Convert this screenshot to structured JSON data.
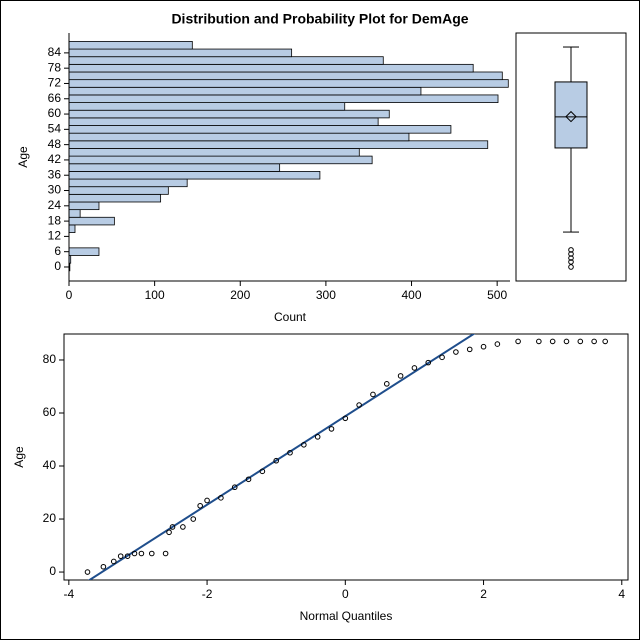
{
  "chart_data": [
    {
      "type": "histogram",
      "title": "Distribution and Probability Plot for DemAge",
      "orientation": "horizontal",
      "xlabel": "Count",
      "ylabel": "Age",
      "color": "#b8cce4",
      "bins": [
        -1.5,
        1.5,
        4.5,
        7.5,
        10.5,
        13.5,
        16.5,
        19.5,
        22.5,
        25.5,
        28.5,
        31.5,
        34.5,
        37.5,
        40.5,
        43.5,
        46.5,
        49.5,
        52.5,
        55.5,
        58.5,
        61.5,
        64.5,
        67.5,
        70.5,
        73.5,
        76.5,
        79.5,
        82.5,
        85.5,
        88.5
      ],
      "values": [
        1,
        2,
        35,
        0,
        0,
        7,
        53,
        13,
        35,
        107,
        116,
        138,
        293,
        246,
        354,
        339,
        489,
        397,
        446,
        361,
        374,
        322,
        501,
        411,
        513,
        506,
        472,
        367,
        260,
        144
      ],
      "xlim": [
        0,
        515
      ],
      "xticks": [
        0,
        100,
        200,
        300,
        400,
        500
      ],
      "ylim": [
        -5.5,
        91.8
      ],
      "yticks": [
        0,
        6,
        12,
        18,
        24,
        30,
        36,
        42,
        48,
        54,
        60,
        66,
        72,
        78,
        84
      ]
    },
    {
      "type": "box",
      "color": "#b8cce4",
      "ylim": [
        -5.5,
        91.8
      ],
      "whisker_low": 13.7,
      "q1": 46.7,
      "median": 58.9,
      "q3": 72.6,
      "whisker_high": 86.3,
      "mean": 59,
      "outliers": [
        0,
        2,
        3.5,
        5.1,
        6.7
      ]
    },
    {
      "type": "qq",
      "xlabel": "Normal Quantiles",
      "ylabel": "Age",
      "line_color": "#1f4e8c",
      "ref_line": {
        "intercept": 58.8,
        "slope": 16.7
      },
      "x": [
        -3.73,
        -3.5,
        -3.35,
        -3.25,
        -3.15,
        -3.05,
        -2.95,
        -2.8,
        -2.6,
        -2.55,
        -2.5,
        -2.35,
        -2.2,
        -2.1,
        -2.0,
        -1.8,
        -1.6,
        -1.4,
        -1.2,
        -1.0,
        -0.8,
        -0.6,
        -0.4,
        -0.2,
        0,
        0.2,
        0.4,
        0.6,
        0.8,
        1.0,
        1.2,
        1.4,
        1.6,
        1.8,
        2.0,
        2.2,
        2.5,
        2.8,
        3.0,
        3.2,
        3.4,
        3.6,
        3.76
      ],
      "values": [
        0,
        2,
        4,
        6,
        6,
        7,
        7,
        7,
        7,
        15,
        17,
        17,
        20,
        25,
        27,
        28,
        32,
        35,
        38,
        42,
        45,
        48,
        51,
        54,
        58,
        63,
        67,
        71,
        74,
        77,
        79,
        81,
        83,
        84,
        85,
        86,
        87,
        87,
        87,
        87,
        87,
        87,
        87
      ],
      "xlim": [
        -4.07,
        4.09
      ],
      "xticks": [
        -4,
        -2,
        0,
        2,
        4
      ],
      "ylim": [
        -3,
        89.8
      ],
      "yticks": [
        0,
        20,
        40,
        60,
        80
      ]
    }
  ]
}
